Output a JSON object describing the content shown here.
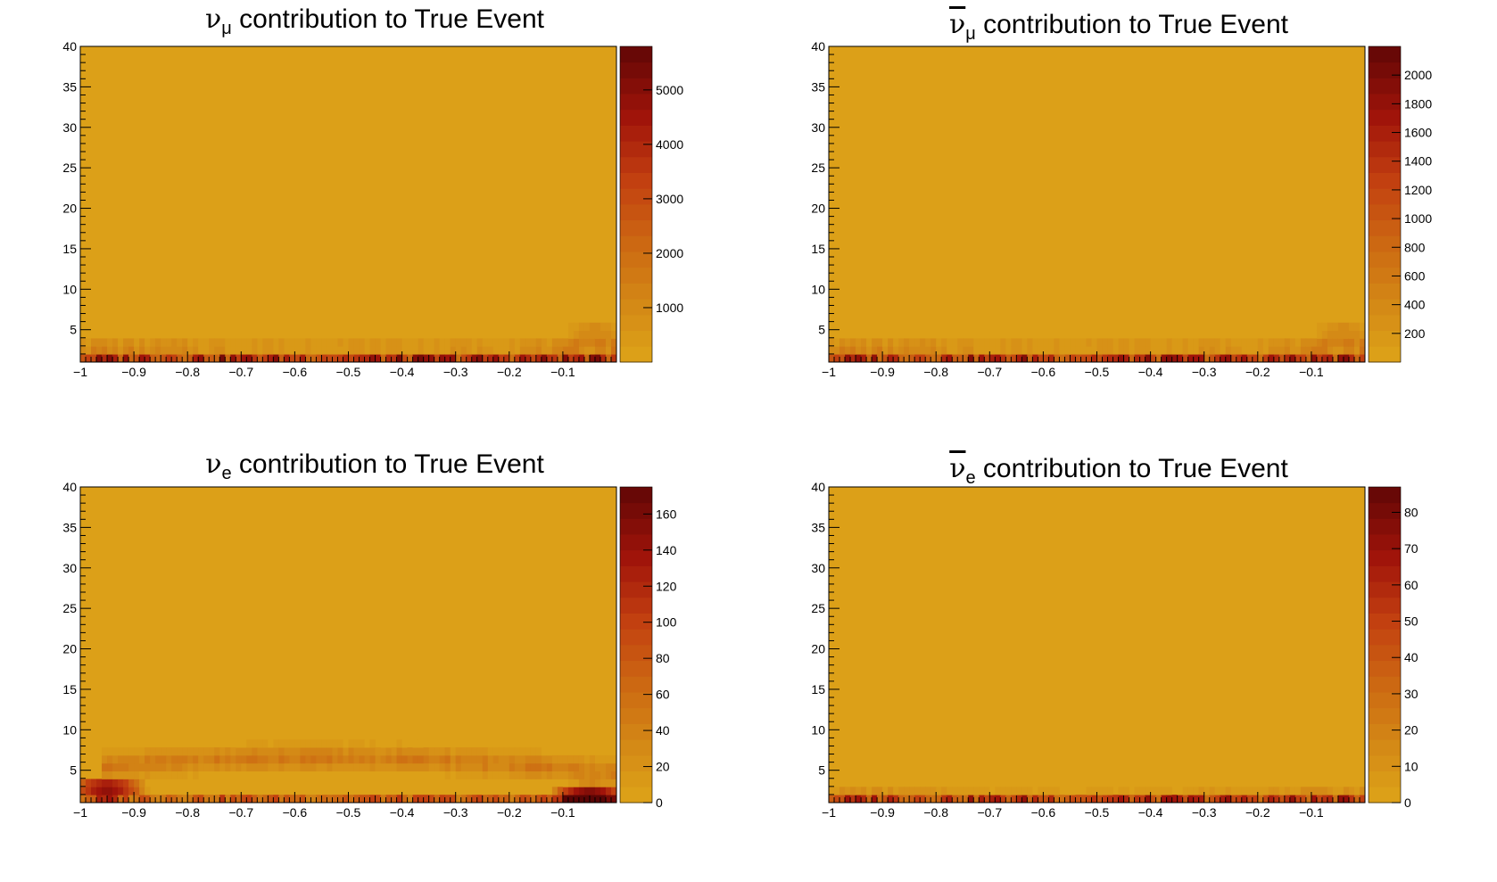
{
  "chart_data": [
    {
      "type": "heatmap",
      "title_symbol": "ν",
      "title_subscript": "μ",
      "title_bar": false,
      "title_text": " contribution to True Event",
      "xlabel": "",
      "ylabel": "",
      "xlim": [
        -1,
        0
      ],
      "ylim": [
        1,
        40
      ],
      "x_ticks": [
        "−1",
        "−0.9",
        "−0.8",
        "−0.7",
        "−0.6",
        "−0.5",
        "−0.4",
        "−0.3",
        "−0.2",
        "−0.1"
      ],
      "y_ticks": [
        "5",
        "10",
        "15",
        "20",
        "25",
        "30",
        "35",
        "40"
      ],
      "colorbar_range": [
        0,
        5800
      ],
      "colorbar_ticks": [
        "1000",
        "2000",
        "3000",
        "4000",
        "5000"
      ],
      "colorbar_tick_values": [
        1000,
        2000,
        3000,
        4000,
        5000
      ],
      "features": [
        {
          "kind": "row",
          "y": 1.5,
          "peak": 5500
        },
        {
          "kind": "band",
          "y": 2.6,
          "peak": 2600,
          "width": 0.5
        },
        {
          "kind": "band",
          "y": 3.5,
          "peak": 1400,
          "width": 0.7
        },
        {
          "kind": "blob",
          "x": -0.04,
          "y": 4.5,
          "peak": 1100
        }
      ]
    },
    {
      "type": "heatmap",
      "title_symbol": "ν",
      "title_subscript": "μ",
      "title_bar": true,
      "title_text": " contribution to True Event",
      "xlabel": "",
      "ylabel": "",
      "xlim": [
        -1,
        0
      ],
      "ylim": [
        1,
        40
      ],
      "x_ticks": [
        "−1",
        "−0.9",
        "−0.8",
        "−0.7",
        "−0.6",
        "−0.5",
        "−0.4",
        "−0.3",
        "−0.2",
        "−0.1"
      ],
      "y_ticks": [
        "5",
        "10",
        "15",
        "20",
        "25",
        "30",
        "35",
        "40"
      ],
      "colorbar_range": [
        0,
        2200
      ],
      "colorbar_ticks": [
        "200",
        "400",
        "600",
        "800",
        "1000",
        "1200",
        "1400",
        "1600",
        "1800",
        "2000"
      ],
      "colorbar_tick_values": [
        200,
        400,
        600,
        800,
        1000,
        1200,
        1400,
        1600,
        1800,
        2000
      ],
      "features": [
        {
          "kind": "row",
          "y": 1.5,
          "peak": 2000
        },
        {
          "kind": "band",
          "y": 2.6,
          "peak": 1000,
          "width": 0.5
        },
        {
          "kind": "band",
          "y": 3.5,
          "peak": 520,
          "width": 0.7
        },
        {
          "kind": "blob",
          "x": -0.04,
          "y": 4.5,
          "peak": 420
        }
      ]
    },
    {
      "type": "heatmap",
      "title_symbol": "ν",
      "title_subscript": "e",
      "title_bar": false,
      "title_text": " contribution to True Event",
      "xlabel": "",
      "ylabel": "",
      "xlim": [
        -1,
        0
      ],
      "ylim": [
        1,
        40
      ],
      "x_ticks": [
        "−1",
        "−0.9",
        "−0.8",
        "−0.7",
        "−0.6",
        "−0.5",
        "−0.4",
        "−0.3",
        "−0.2",
        "−0.1"
      ],
      "y_ticks": [
        "5",
        "10",
        "15",
        "20",
        "25",
        "30",
        "35",
        "40"
      ],
      "colorbar_range": [
        0,
        175
      ],
      "colorbar_ticks": [
        "0",
        "20",
        "40",
        "60",
        "80",
        "100",
        "120",
        "140",
        "160"
      ],
      "colorbar_tick_values": [
        0,
        20,
        40,
        60,
        80,
        100,
        120,
        140,
        160
      ],
      "features": [
        {
          "kind": "row",
          "y": 1.5,
          "peak": 110
        },
        {
          "kind": "arc",
          "y": 6.5,
          "peak": 60,
          "width": 2.2
        },
        {
          "kind": "hotspot",
          "x": -0.95,
          "y": 2.8,
          "peak": 150
        },
        {
          "kind": "hotspot",
          "x": -0.05,
          "y": 2.0,
          "peak": 165
        }
      ]
    },
    {
      "type": "heatmap",
      "title_symbol": "ν",
      "title_subscript": "e",
      "title_bar": true,
      "title_text": " contribution to True Event",
      "xlabel": "",
      "ylabel": "",
      "xlim": [
        -1,
        0
      ],
      "ylim": [
        1,
        40
      ],
      "x_ticks": [
        "−1",
        "−0.9",
        "−0.8",
        "−0.7",
        "−0.6",
        "−0.5",
        "−0.4",
        "−0.3",
        "−0.2",
        "−0.1"
      ],
      "y_ticks": [
        "5",
        "10",
        "15",
        "20",
        "25",
        "30",
        "35",
        "40"
      ],
      "colorbar_range": [
        0,
        87
      ],
      "colorbar_ticks": [
        "0",
        "10",
        "20",
        "30",
        "40",
        "50",
        "60",
        "70",
        "80"
      ],
      "colorbar_tick_values": [
        0,
        10,
        20,
        30,
        40,
        50,
        60,
        70,
        80
      ],
      "features": [
        {
          "kind": "row",
          "y": 1.5,
          "peak": 75
        },
        {
          "kind": "band",
          "y": 2.6,
          "peak": 25,
          "width": 0.5
        }
      ]
    }
  ],
  "colors": {
    "low": "#dca018",
    "mid": "#c85010",
    "high": "#5a0505",
    "frame": "#000000"
  }
}
